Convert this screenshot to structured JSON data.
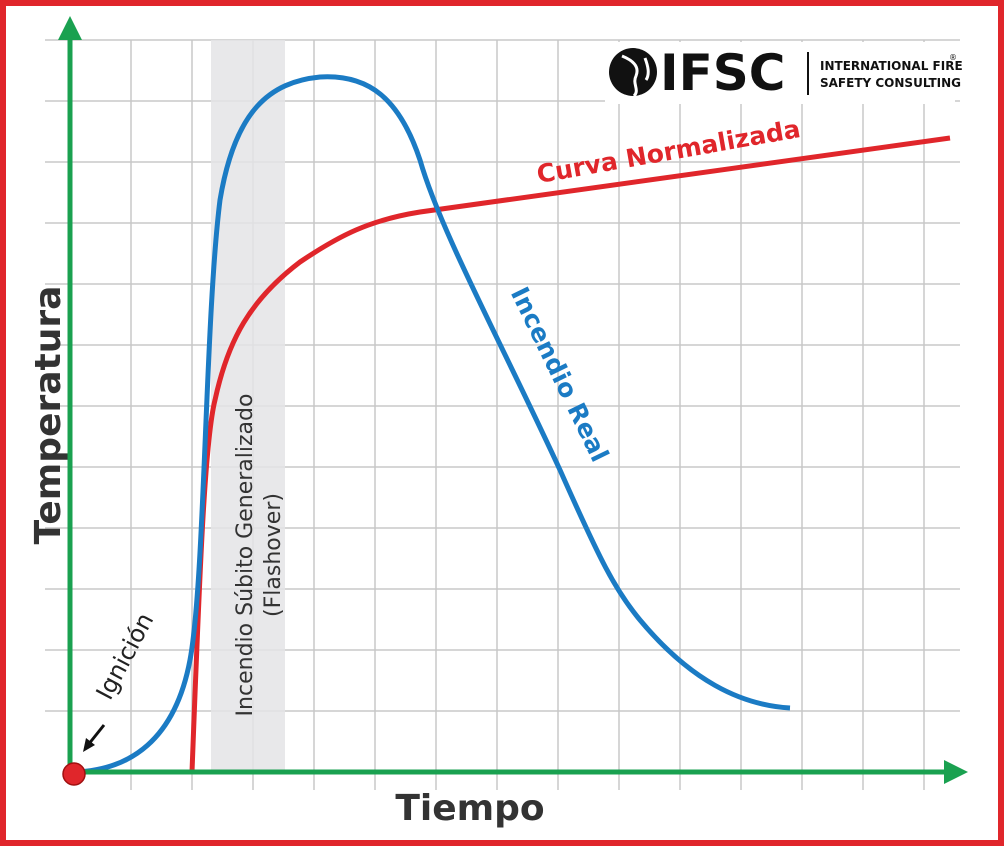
{
  "axes": {
    "y_label": "Temperatura",
    "x_label": "Tiempo"
  },
  "curves": [
    {
      "label": "Curva Normalizada"
    },
    {
      "label": "Incendio Real"
    }
  ],
  "annotations": {
    "ignition": "Ignición",
    "flashover_line1": "Incendio Súbito Generalizado",
    "flashover_line2": "(Flashover)"
  },
  "logo": {
    "acronym": "IFSC",
    "line1": "INTERNATIONAL FIRE",
    "line2": "SAFETY CONSULTING",
    "mark": "®"
  }
}
